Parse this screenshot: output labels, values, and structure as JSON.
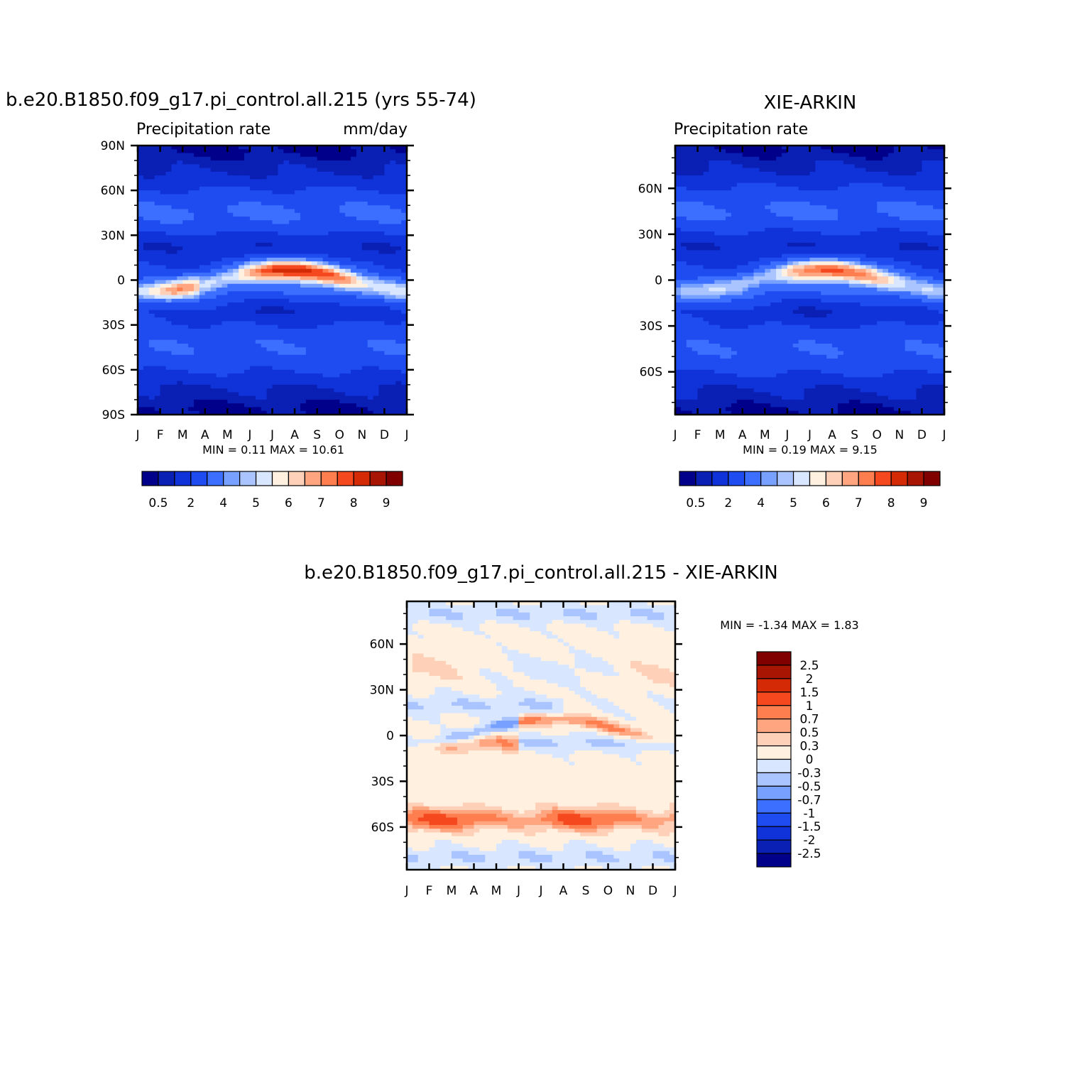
{
  "colors": {
    "abs_levels": [
      "#00008a",
      "#0a1fb3",
      "#1033d9",
      "#1f4cf0",
      "#3c6fff",
      "#78a0ff",
      "#a9c4ff",
      "#d8e7ff",
      "#fff0e0",
      "#ffd0b8",
      "#ffa580",
      "#ff7e4f",
      "#f5481f",
      "#d42a06",
      "#a81503",
      "#800000"
    ],
    "diff_levels": [
      "#00008a",
      "#0a1fb3",
      "#1033d9",
      "#1f4cf0",
      "#3c6fff",
      "#78a0ff",
      "#a9c4ff",
      "#d8e7ff",
      "#fff0e0",
      "#ffd0b8",
      "#ffa580",
      "#ff7e4f",
      "#f5481f",
      "#d42a06",
      "#a81503",
      "#800000"
    ]
  },
  "months": [
    "J",
    "F",
    "M",
    "A",
    "M",
    "J",
    "J",
    "A",
    "S",
    "O",
    "N",
    "D",
    "J"
  ],
  "chart_data": [
    {
      "type": "heatmap",
      "title": "b.e20.B1850.f09_g17.pi_control.all.215 (yrs 55-74)",
      "left_string": "Precipitation rate",
      "right_string": "mm/day",
      "ylabels": [
        "90N",
        "60N",
        "30N",
        "0",
        "30S",
        "60S",
        "90S"
      ],
      "yticks": [
        90,
        60,
        30,
        0,
        -30,
        -60,
        -90
      ],
      "ylim": [
        -90,
        90
      ],
      "stats": "MIN =    0.11  MAX =    10.61",
      "colorbar_labels": [
        "0.5",
        "2",
        "4",
        "5",
        "6",
        "7",
        "8",
        "9"
      ]
    },
    {
      "type": "heatmap",
      "title": "XIE-ARKIN",
      "left_string": "Precipitation rate",
      "right_string": "",
      "ylabels": [
        "60N",
        "30N",
        "0",
        "30S",
        "60S"
      ],
      "yticks": [
        60,
        30,
        0,
        -30,
        -60
      ],
      "ylim": [
        -88,
        88
      ],
      "stats": "MIN =    0.19  MAX =     9.15",
      "colorbar_labels": [
        "0.5",
        "2",
        "4",
        "5",
        "6",
        "7",
        "8",
        "9"
      ]
    },
    {
      "type": "heatmap",
      "title": "b.e20.B1850.f09_g17.pi_control.all.215  -  XIE-ARKIN",
      "ylabels": [
        "60N",
        "30N",
        "0",
        "30S",
        "60S"
      ],
      "yticks": [
        60,
        30,
        0,
        -30,
        -60
      ],
      "ylim": [
        -88,
        88
      ],
      "stats": "MIN =   -1.34  MAX =     1.83",
      "colorbar_labels": [
        "2.5",
        "2",
        "1.5",
        "1",
        "0.7",
        "0.5",
        "0.3",
        "0",
        "-0.3",
        "-0.5",
        "-0.7",
        "-1",
        "-1.5",
        "-2",
        "-2.5"
      ]
    }
  ]
}
